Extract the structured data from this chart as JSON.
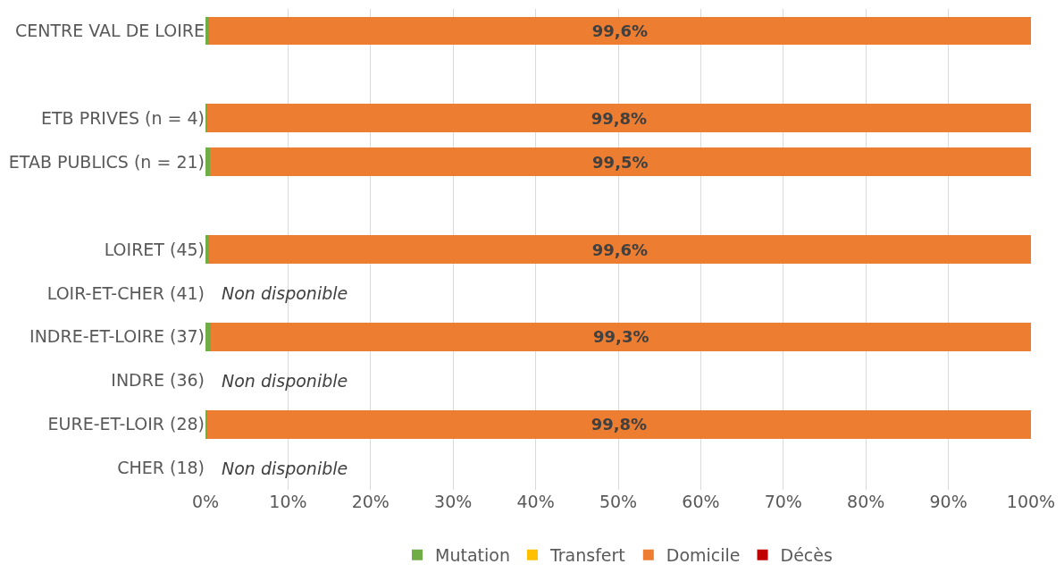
{
  "chart_data": {
    "type": "bar",
    "orientation": "horizontal",
    "stacked": true,
    "categories": [
      "CENTRE VAL DE LOIRE",
      null,
      "ETB PRIVES (n = 4)",
      "ETAB PUBLICS (n = 21)",
      null,
      "LOIRET (45)",
      "LOIR-ET-CHER (41)",
      "INDRE-ET-LOIRE (37)",
      "INDRE (36)",
      "EURE-ET-LOIR (28)",
      "CHER (18)"
    ],
    "series": [
      {
        "name": "Mutation",
        "color": "#70ad47",
        "values": [
          0.4,
          null,
          0.2,
          0.5,
          null,
          0.4,
          null,
          0.7,
          null,
          0.2,
          null
        ]
      },
      {
        "name": "Transfert",
        "color": "#ffc000",
        "values": [
          0,
          null,
          0,
          0,
          null,
          0,
          null,
          0,
          null,
          0,
          null
        ]
      },
      {
        "name": "Domicile",
        "color": "#ed7d31",
        "values": [
          99.6,
          null,
          99.8,
          99.5,
          null,
          99.6,
          null,
          99.3,
          null,
          99.8,
          null
        ],
        "value_labels": [
          "99,6%",
          null,
          "99,8%",
          "99,5%",
          null,
          "99,6%",
          null,
          "99,3%",
          null,
          "99,8%",
          null
        ]
      },
      {
        "name": "Décès",
        "color": "#c00000",
        "values": [
          0,
          null,
          0,
          0,
          null,
          0,
          null,
          0,
          null,
          0,
          null
        ]
      }
    ],
    "annotations": [
      "Non disponible",
      "Non disponible",
      "Non disponible"
    ],
    "xlim": [
      0,
      100
    ],
    "xticks": [
      {
        "value": 0,
        "label": "0%"
      },
      {
        "value": 10,
        "label": "10%"
      },
      {
        "value": 20,
        "label": "20%"
      },
      {
        "value": 30,
        "label": "30%"
      },
      {
        "value": 40,
        "label": "40%"
      },
      {
        "value": 50,
        "label": "50%"
      },
      {
        "value": 60,
        "label": "60%"
      },
      {
        "value": 70,
        "label": "70%"
      },
      {
        "value": 80,
        "label": "80%"
      },
      {
        "value": 90,
        "label": "90%"
      },
      {
        "value": 100,
        "label": "100%"
      }
    ],
    "grid": "x",
    "legend": "bottom"
  }
}
